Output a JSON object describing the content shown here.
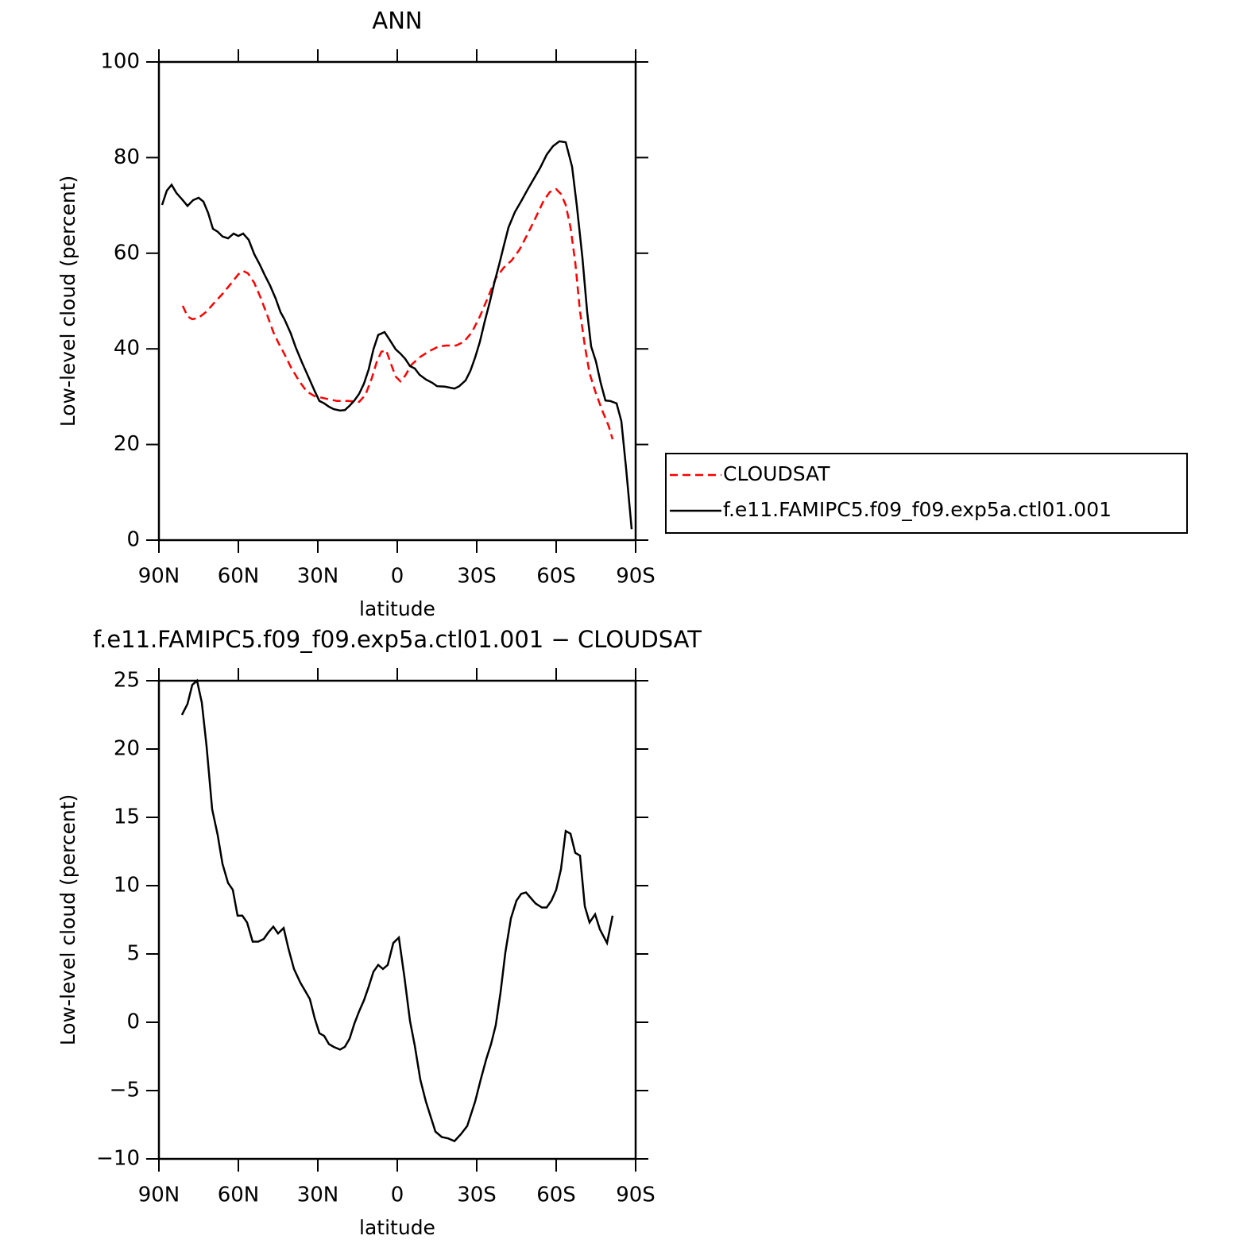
{
  "chart_data": [
    {
      "type": "line",
      "title": "ANN",
      "xlabel": "latitude",
      "ylabel": "Low-level cloud (percent)",
      "xlim": [
        90,
        -90
      ],
      "xticks": [
        {
          "value": 90,
          "label": "90N"
        },
        {
          "value": 60,
          "label": "60N"
        },
        {
          "value": 30,
          "label": "30N"
        },
        0,
        {
          "value": -30,
          "label": "30S"
        },
        {
          "value": -60,
          "label": "60S"
        },
        {
          "value": -90,
          "label": "90S"
        }
      ],
      "ylim": [
        0,
        100
      ],
      "yticks": [
        0,
        20,
        40,
        60,
        80,
        100
      ],
      "legend": true,
      "legend_position": "right",
      "series": [
        {
          "name": "CLOUDSAT",
          "color": "#ff0000",
          "dash": "dashed",
          "x": [
            81,
            79.2,
            77.4,
            75,
            72,
            69,
            66,
            63,
            60,
            58.2,
            56.4,
            54,
            51.6,
            49.2,
            46.8,
            45,
            42.6,
            40.2,
            37.2,
            34.2,
            31.2,
            27,
            22.8,
            18.6,
            14.4,
            12,
            9.6,
            7.8,
            6,
            4.2,
            2.4,
            0.6,
            -1.2,
            -3,
            -5.4,
            -8.4,
            -12,
            -15.6,
            -18.6,
            -22.2,
            -25.2,
            -28.2,
            -31.2,
            -34.2,
            -37.2,
            -40.2,
            -43.2,
            -46.2,
            -49.2,
            -52.2,
            -55.2,
            -57.6,
            -60,
            -61.8,
            -63.6,
            -65.4,
            -67.2,
            -69,
            -70.8,
            -72.6,
            -75,
            -77.4,
            -79.8,
            -81.3
          ],
          "values": [
            49,
            46.8,
            46.2,
            46.5,
            47.8,
            49.7,
            51.5,
            53.5,
            55.6,
            56.3,
            55.8,
            53.8,
            50.7,
            47.2,
            43.5,
            41.4,
            38.9,
            36.2,
            33.4,
            31.1,
            30.1,
            29.6,
            29.1,
            29.1,
            28.9,
            30.4,
            33.9,
            37.2,
            39.4,
            39.7,
            36.9,
            34.2,
            33.2,
            34.4,
            36.7,
            38.2,
            39.5,
            40.5,
            40.7,
            40.7,
            41.5,
            43.5,
            46.8,
            50.7,
            54.8,
            57,
            58.5,
            60.8,
            64,
            67.4,
            70.9,
            72.8,
            73.4,
            72.4,
            70.1,
            65.4,
            58.1,
            47.8,
            40.7,
            34.9,
            30.7,
            27.1,
            23.9,
            21.1
          ]
        },
        {
          "name": "f.e11.FAMIPC5.f09_f09.exp5a.ctl01.001",
          "color": "#000000",
          "dash": "solid",
          "x": [
            88.8,
            87,
            85.2,
            83.4,
            81.3,
            79.2,
            77.1,
            75,
            73.2,
            71.4,
            69.6,
            67.8,
            66,
            63.9,
            61.8,
            60,
            58.2,
            56.1,
            54,
            51.9,
            50.1,
            48,
            45.9,
            44.1,
            42.6,
            40.2,
            38.4,
            36,
            33.6,
            31.2,
            29.4,
            27.6,
            25.8,
            24,
            21.6,
            19.8,
            18,
            16.2,
            14.4,
            12.6,
            10.8,
            9,
            7.2,
            4.8,
            3,
            0.6,
            -1.2,
            -3,
            -4.8,
            -6.6,
            -8.4,
            -10.8,
            -13.2,
            -15,
            -18,
            -21.6,
            -23.4,
            -25.8,
            -27.6,
            -29.4,
            -31.2,
            -33,
            -34.8,
            -36.6,
            -38.4,
            -40.2,
            -42,
            -44.4,
            -46.8,
            -49.2,
            -51.6,
            -54,
            -56.4,
            -58.8,
            -61.2,
            -63.6,
            -66,
            -67.8,
            -69.9,
            -71.7,
            -73.2,
            -75,
            -76.8,
            -78.6,
            -80.4,
            -82.8,
            -84.6,
            -86.4,
            -88.5
          ],
          "values": [
            70.1,
            73.1,
            74.3,
            72.6,
            71.3,
            69.9,
            71.1,
            71.6,
            70.8,
            68.4,
            65.1,
            64.5,
            63.5,
            63.1,
            64.1,
            63.6,
            64.1,
            62.8,
            59.8,
            57.6,
            55.5,
            53.2,
            50.5,
            47.7,
            46.2,
            43.2,
            40.4,
            37.2,
            34.2,
            31.2,
            29.1,
            28.6,
            27.9,
            27.4,
            27.1,
            27.2,
            28.1,
            29.2,
            30.6,
            32.7,
            35.7,
            39.9,
            42.9,
            43.5,
            42,
            39.9,
            39,
            37.9,
            36.4,
            35.9,
            34.6,
            33.6,
            32.9,
            32.2,
            32.1,
            31.7,
            32.2,
            33.4,
            35.4,
            38.2,
            41.5,
            45.7,
            49.5,
            53.7,
            57.5,
            61.5,
            65.4,
            68.6,
            70.9,
            73.3,
            75.6,
            77.9,
            80.6,
            82.4,
            83.4,
            83.2,
            78.1,
            69.9,
            59.1,
            47.7,
            40.5,
            37.4,
            32.9,
            29.2,
            29.1,
            28.6,
            24.9,
            15,
            2.3
          ]
        }
      ]
    },
    {
      "type": "line",
      "title": "f.e11.FAMIPC5.f09_f09.exp5a.ctl01.001 − CLOUDSAT",
      "xlabel": "latitude",
      "ylabel": "Low-level cloud (percent)",
      "xlim": [
        90,
        -90
      ],
      "xticks": [
        {
          "value": 90,
          "label": "90N"
        },
        {
          "value": 60,
          "label": "60N"
        },
        {
          "value": 30,
          "label": "30N"
        },
        0,
        {
          "value": -30,
          "label": "30S"
        },
        {
          "value": -60,
          "label": "60S"
        },
        {
          "value": -90,
          "label": "90S"
        }
      ],
      "ylim": [
        -10,
        25
      ],
      "yticks": [
        {
          "value": -10,
          "label": "−10"
        },
        {
          "value": -5,
          "label": "−5"
        },
        0,
        5,
        10,
        15,
        20,
        25
      ],
      "legend": false,
      "series": [
        {
          "color": "#000000",
          "dash": "solid",
          "x": [
            81.3,
            79.2,
            77.4,
            75.6,
            73.8,
            72,
            69.9,
            67.8,
            66,
            63.9,
            62.1,
            60.3,
            58.5,
            56.7,
            54.6,
            52.5,
            50.4,
            48.6,
            46.8,
            45,
            42.9,
            41.1,
            39,
            36.6,
            34.8,
            33,
            31.2,
            29.4,
            27.6,
            25.8,
            24,
            21.6,
            19.8,
            18,
            16.2,
            14.4,
            12.6,
            10.8,
            9,
            7.2,
            5.4,
            3.6,
            1.5,
            -0.6,
            -2.7,
            -4.8,
            -6.6,
            -8.7,
            -10.8,
            -12.6,
            -14.4,
            -16.8,
            -19.2,
            -21.6,
            -24,
            -26.4,
            -29.4,
            -31.5,
            -33.6,
            -35.4,
            -37.2,
            -39,
            -40.8,
            -42.9,
            -45,
            -46.8,
            -48.6,
            -50.4,
            -52.2,
            -54.6,
            -56.4,
            -58.2,
            -60,
            -61.8,
            -63.6,
            -65.4,
            -67.2,
            -69,
            -70.8,
            -72.6,
            -74.7,
            -76.5,
            -79.2,
            -81.3
          ],
          "values": [
            22.5,
            23.3,
            24.7,
            25,
            23.4,
            20.2,
            15.6,
            13.7,
            11.6,
            10.2,
            9.7,
            7.8,
            7.8,
            7.3,
            5.9,
            5.9,
            6.1,
            6.6,
            7,
            6.5,
            6.9,
            5.4,
            3.9,
            2.9,
            2.3,
            1.7,
            0.3,
            -0.8,
            -1,
            -1.6,
            -1.8,
            -2,
            -1.8,
            -1.2,
            -0.1,
            0.8,
            1.6,
            2.6,
            3.7,
            4.2,
            3.9,
            4.2,
            5.8,
            6.2,
            3.3,
            0.1,
            -1.7,
            -4.2,
            -5.8,
            -6.9,
            -8,
            -8.4,
            -8.5,
            -8.7,
            -8.2,
            -7.6,
            -5.8,
            -4.2,
            -2.7,
            -1.6,
            -0.2,
            2.2,
            5.1,
            7.6,
            8.9,
            9.4,
            9.5,
            9.1,
            8.7,
            8.4,
            8.4,
            8.9,
            9.7,
            11.2,
            14,
            13.8,
            12.4,
            12.2,
            8.5,
            7.3,
            7.9,
            6.8,
            5.8,
            7.8
          ]
        }
      ]
    }
  ]
}
